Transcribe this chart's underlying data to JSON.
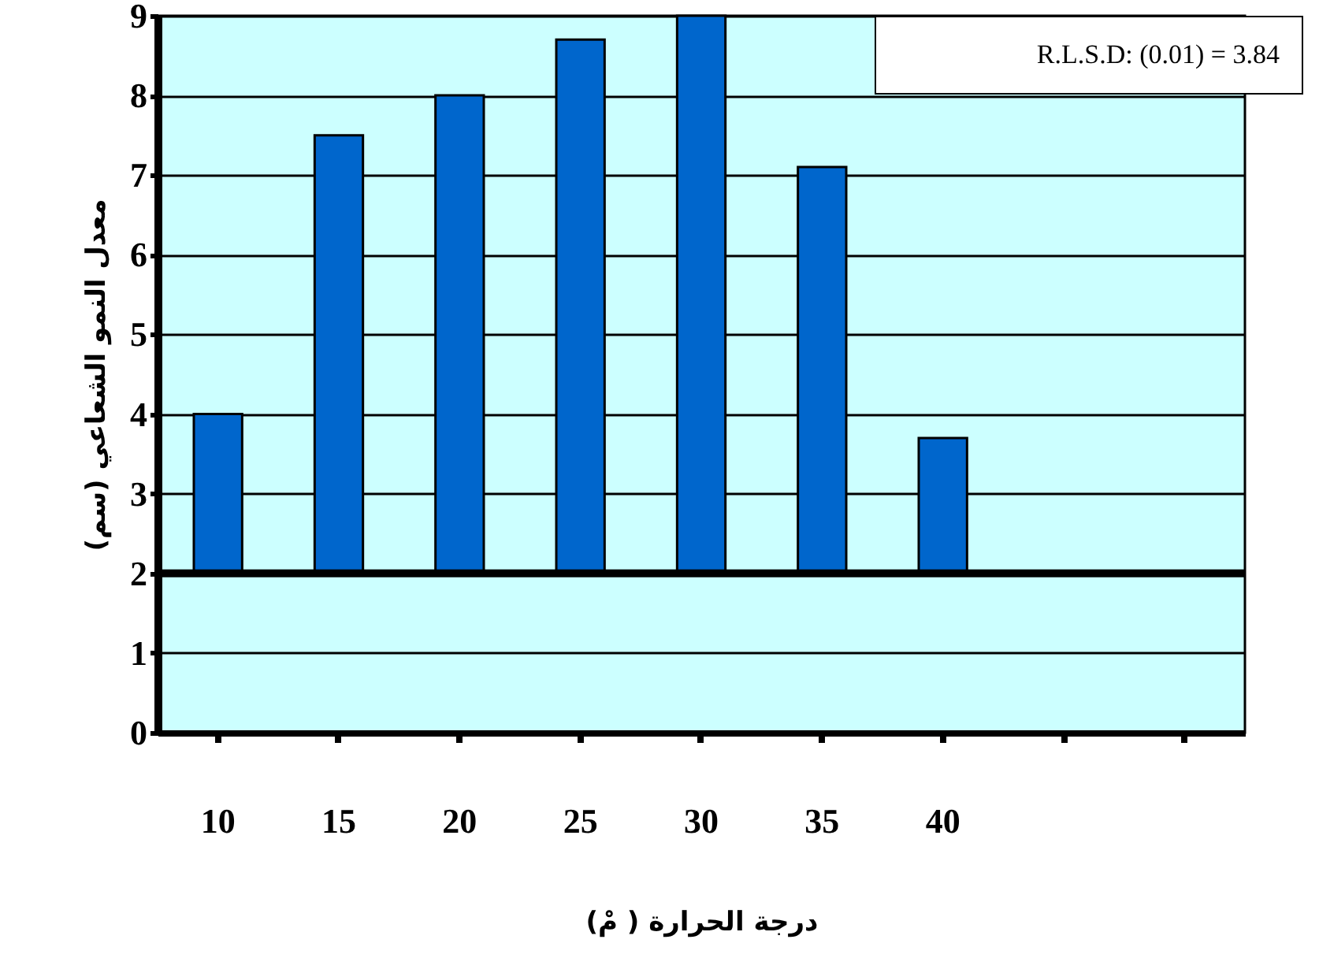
{
  "chart_data": {
    "type": "bar",
    "categories": [
      "10",
      "15",
      "20",
      "25",
      "30",
      "35",
      "40",
      null,
      null
    ],
    "base": [
      2,
      2,
      2,
      2,
      2,
      2,
      2,
      null,
      null
    ],
    "values": [
      2.0,
      5.5,
      6.0,
      6.7,
      7.0,
      5.1,
      1.7,
      null,
      null
    ],
    "color": "#0066cc",
    "xlabel": "درجة الحرارة ( مْ)",
    "ylabel": "معدل النمو الشعاعي (سم)",
    "ylim": [
      0,
      9
    ],
    "yticks": [
      0,
      1,
      2,
      3,
      4,
      5,
      6,
      7,
      8,
      9
    ],
    "grid": "y",
    "ref_lines": [
      {
        "axis": "y",
        "value": 2,
        "color": "#000000"
      }
    ],
    "annotations": [
      "R.L.S.D: (0.01) = 3.84"
    ]
  }
}
